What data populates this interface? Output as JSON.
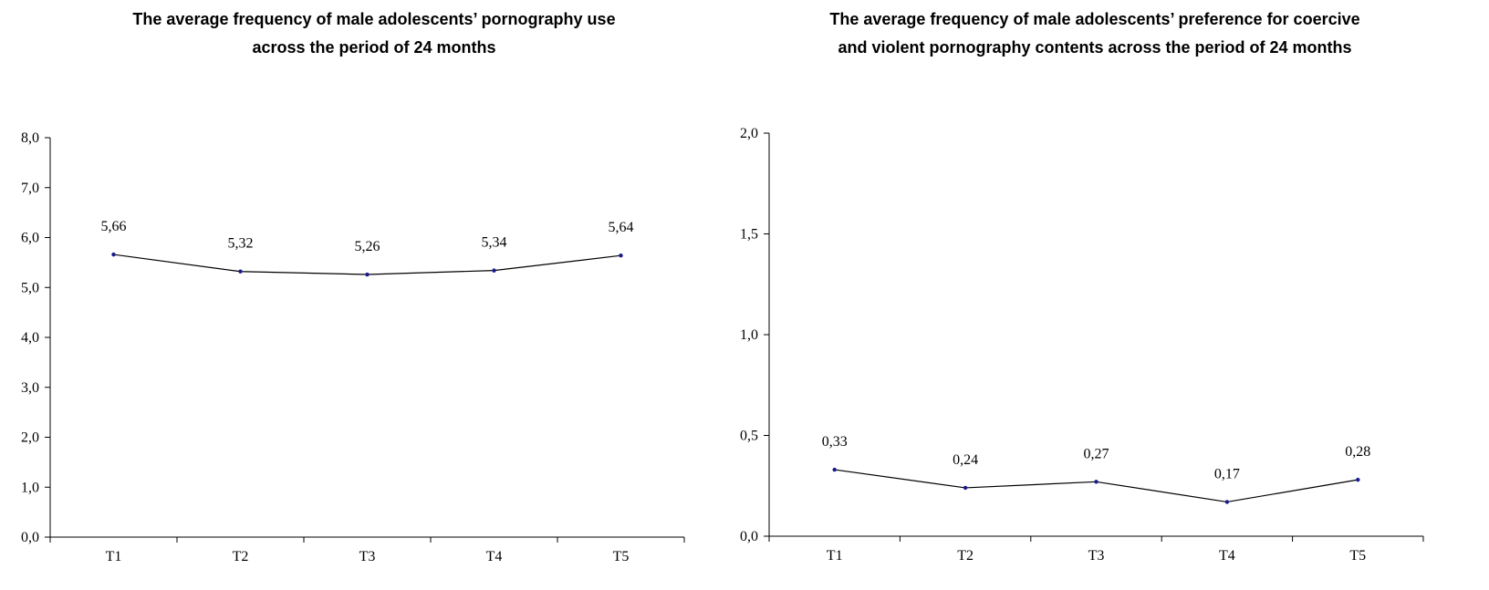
{
  "chart_data": [
    {
      "type": "line",
      "title_lines": [
        "The average frequency of male adolescents’ pornography use",
        "across the period of 24 months"
      ],
      "xlabel": "",
      "ylabel": "",
      "categories": [
        "T1",
        "T2",
        "T3",
        "T4",
        "T5"
      ],
      "values": [
        5.66,
        5.32,
        5.26,
        5.34,
        5.64
      ],
      "value_labels": [
        "5,66",
        "5,32",
        "5,26",
        "5,34",
        "5,64"
      ],
      "ylim": [
        0,
        8
      ],
      "yticks": [
        0,
        1,
        2,
        3,
        4,
        5,
        6,
        7,
        8
      ],
      "ytick_labels": [
        "0,0",
        "1,0",
        "2,0",
        "3,0",
        "4,0",
        "5,0",
        "6,0",
        "7,0",
        "8,0"
      ],
      "grid": false,
      "legend": "none",
      "line_color": "#000000",
      "marker_color": "#1a1a8c"
    },
    {
      "type": "line",
      "title_lines": [
        "The average frequency of male adolescents’ preference for coercive",
        "and violent pornography contents across the period of 24 months"
      ],
      "xlabel": "",
      "ylabel": "",
      "categories": [
        "T1",
        "T2",
        "T3",
        "T4",
        "T5"
      ],
      "values": [
        0.33,
        0.24,
        0.27,
        0.17,
        0.28
      ],
      "value_labels": [
        "0,33",
        "0,24",
        "0,27",
        "0,17",
        "0,28"
      ],
      "ylim": [
        0,
        2
      ],
      "yticks": [
        0,
        0.5,
        1,
        1.5,
        2
      ],
      "ytick_labels": [
        "0,0",
        "0,5",
        "1,0",
        "1,5",
        "2,0"
      ],
      "grid": false,
      "legend": "none",
      "line_color": "#000000",
      "marker_color": "#1a1a8c"
    }
  ]
}
